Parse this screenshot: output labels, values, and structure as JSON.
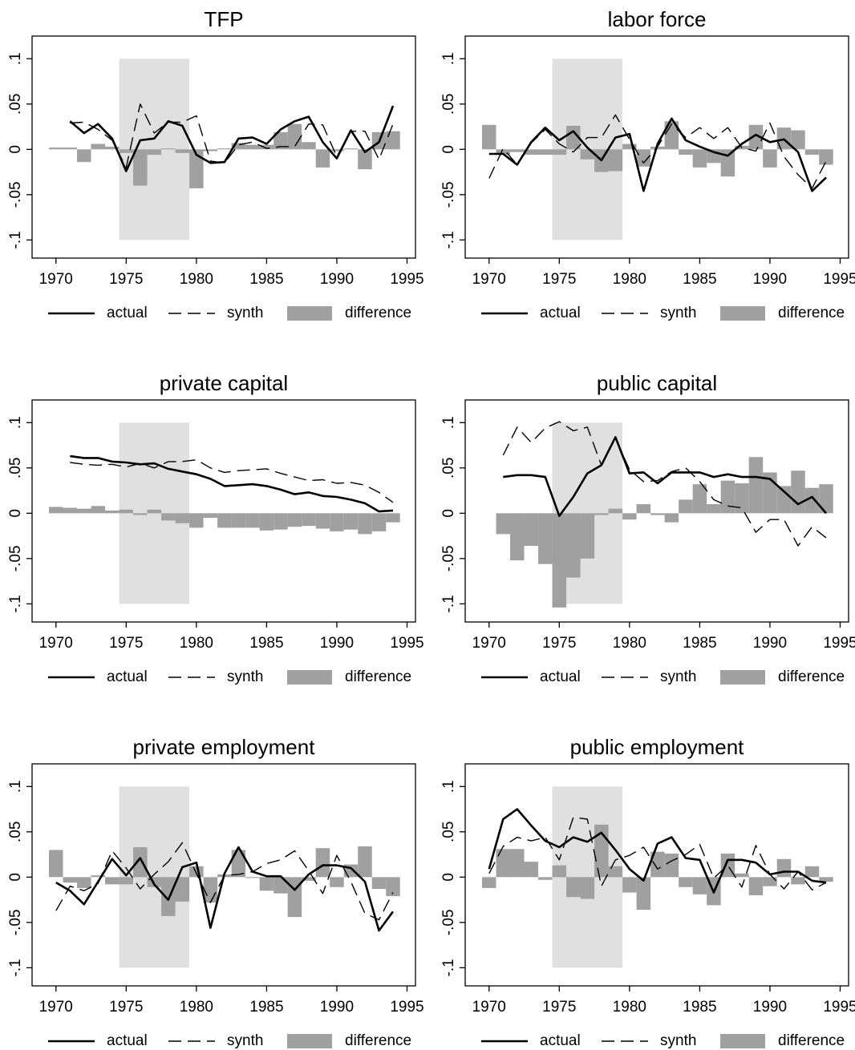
{
  "chart_data": [
    {
      "type": "combo",
      "title": "TFP",
      "x": [
        1970,
        1971,
        1972,
        1973,
        1974,
        1975,
        1976,
        1977,
        1978,
        1979,
        1980,
        1981,
        1982,
        1983,
        1984,
        1985,
        1986,
        1987,
        1988,
        1989,
        1990,
        1991,
        1992,
        1993,
        1994
      ],
      "series": [
        {
          "name": "actual",
          "color": "#000000",
          "mark": "line",
          "line_style": "solid",
          "values": [
            null,
            0.031,
            0.018,
            0.028,
            0.012,
            -0.024,
            0.01,
            0.012,
            0.031,
            0.026,
            -0.006,
            -0.015,
            -0.014,
            0.012,
            0.013,
            0.006,
            0.022,
            0.031,
            0.036,
            0.008,
            -0.01,
            0.021,
            -0.003,
            0.008,
            0.048
          ]
        },
        {
          "name": "synth",
          "color": "#000000",
          "mark": "line",
          "line_style": "dashed",
          "values": [
            null,
            0.029,
            0.03,
            0.022,
            0.01,
            -0.02,
            0.05,
            0.018,
            0.03,
            0.03,
            0.037,
            -0.013,
            -0.015,
            0.005,
            0.008,
            0.001,
            0.003,
            0.003,
            0.028,
            0.027,
            -0.008,
            0.02,
            0.02,
            -0.011,
            0.028
          ]
        },
        {
          "name": "difference",
          "color": "#a0a0a0",
          "mark": "bar",
          "values": [
            0.002,
            0.002,
            -0.014,
            0.006,
            0.003,
            -0.004,
            -0.04,
            -0.006,
            0.001,
            -0.004,
            -0.043,
            -0.002,
            0.001,
            0.007,
            0.005,
            0.005,
            0.019,
            0.028,
            0.008,
            -0.02,
            -0.002,
            0.001,
            -0.022,
            0.019,
            0.02
          ]
        }
      ],
      "shaded_region": {
        "x": [
          1974.5,
          1979.5
        ],
        "y": [
          -0.1,
          0.1
        ],
        "color": "#e0e0e0"
      },
      "xlim": [
        1968.3,
        1995.6
      ],
      "ylim": [
        -0.12,
        0.125
      ],
      "xticks": [
        1970,
        1975,
        1980,
        1985,
        1990,
        1995
      ],
      "yticks": [
        {
          "value": -0.1,
          "label": "-.1"
        },
        {
          "value": -0.05,
          "label": "-.05"
        },
        0,
        {
          "value": 0.05,
          "label": ".05"
        },
        {
          "value": 0.1,
          "label": ".1"
        }
      ],
      "legend": "bottom"
    },
    {
      "type": "combo",
      "title": "labor force",
      "x": [
        1970,
        1971,
        1972,
        1973,
        1974,
        1975,
        1976,
        1977,
        1978,
        1979,
        1980,
        1981,
        1982,
        1983,
        1984,
        1985,
        1986,
        1987,
        1988,
        1989,
        1990,
        1991,
        1992,
        1993,
        1994
      ],
      "series": [
        {
          "name": "actual",
          "color": "#000000",
          "mark": "line",
          "line_style": "solid",
          "values": [
            -0.005,
            -0.005,
            -0.017,
            0.008,
            0.024,
            0.01,
            0.02,
            0.002,
            -0.012,
            0.013,
            0.017,
            -0.046,
            0.006,
            0.034,
            0.01,
            0.003,
            -0.003,
            -0.007,
            0.006,
            0.016,
            0.008,
            0.011,
            -0.003,
            -0.046,
            -0.031
          ]
        },
        {
          "name": "synth",
          "color": "#000000",
          "mark": "line",
          "line_style": "dashed",
          "values": [
            -0.032,
            0.001,
            -0.017,
            0.007,
            0.022,
            0.006,
            -0.003,
            0.013,
            0.013,
            0.038,
            0.011,
            -0.015,
            0.003,
            0.028,
            0.013,
            0.024,
            0.012,
            0.024,
            0.002,
            -0.002,
            0.029,
            -0.008,
            -0.028,
            -0.043,
            -0.013
          ]
        },
        {
          "name": "difference",
          "color": "#a0a0a0",
          "mark": "bar",
          "values": [
            0.027,
            -0.006,
            -0.003,
            -0.006,
            -0.006,
            -0.006,
            0.026,
            -0.011,
            -0.025,
            -0.024,
            0.006,
            -0.019,
            0.003,
            0.031,
            -0.006,
            -0.02,
            -0.015,
            -0.03,
            0.004,
            0.027,
            -0.02,
            0.024,
            0.021,
            -0.006,
            -0.017
          ]
        }
      ],
      "shaded_region": {
        "x": [
          1974.5,
          1979.5
        ],
        "y": [
          -0.1,
          0.1
        ],
        "color": "#e0e0e0"
      },
      "xlim": [
        1968.3,
        1995.6
      ],
      "ylim": [
        -0.12,
        0.125
      ],
      "xticks": [
        1970,
        1975,
        1980,
        1985,
        1990,
        1995
      ],
      "yticks": [
        {
          "value": -0.1,
          "label": "-.1"
        },
        {
          "value": -0.05,
          "label": "-.05"
        },
        0,
        {
          "value": 0.05,
          "label": ".05"
        },
        {
          "value": 0.1,
          "label": ".1"
        }
      ],
      "legend": "bottom"
    },
    {
      "type": "combo",
      "title": "private capital",
      "x": [
        1970,
        1971,
        1972,
        1973,
        1974,
        1975,
        1976,
        1977,
        1978,
        1979,
        1980,
        1981,
        1982,
        1983,
        1984,
        1985,
        1986,
        1987,
        1988,
        1989,
        1990,
        1991,
        1992,
        1993,
        1994
      ],
      "series": [
        {
          "name": "actual",
          "color": "#000000",
          "mark": "line",
          "line_style": "solid",
          "values": [
            null,
            0.063,
            0.061,
            0.061,
            0.057,
            0.056,
            0.054,
            0.055,
            0.049,
            0.046,
            0.043,
            0.038,
            0.03,
            0.031,
            0.032,
            0.03,
            0.026,
            0.021,
            0.023,
            0.019,
            0.018,
            0.015,
            0.011,
            0.002,
            0.003
          ]
        },
        {
          "name": "synth",
          "color": "#000000",
          "mark": "line",
          "line_style": "dashed",
          "values": [
            null,
            0.056,
            0.054,
            0.053,
            0.054,
            0.051,
            0.055,
            0.05,
            0.057,
            0.057,
            0.059,
            0.05,
            0.045,
            0.047,
            0.048,
            0.049,
            0.044,
            0.04,
            0.036,
            0.037,
            0.033,
            0.034,
            0.031,
            0.023,
            0.012
          ]
        },
        {
          "name": "difference",
          "color": "#a0a0a0",
          "mark": "bar",
          "values": [
            0.007,
            0.006,
            0.005,
            0.008,
            0.003,
            0.004,
            -0.002,
            0.004,
            -0.008,
            -0.011,
            -0.016,
            -0.005,
            -0.016,
            -0.016,
            -0.016,
            -0.019,
            -0.018,
            -0.015,
            -0.014,
            -0.017,
            -0.02,
            -0.018,
            -0.023,
            -0.02,
            -0.01
          ]
        }
      ],
      "shaded_region": {
        "x": [
          1974.5,
          1979.5
        ],
        "y": [
          -0.1,
          0.1
        ],
        "color": "#e0e0e0"
      },
      "xlim": [
        1968.3,
        1995.6
      ],
      "ylim": [
        -0.12,
        0.125
      ],
      "xticks": [
        1970,
        1975,
        1980,
        1985,
        1990,
        1995
      ],
      "yticks": [
        {
          "value": -0.1,
          "label": "-.1"
        },
        {
          "value": -0.05,
          "label": "-.05"
        },
        0,
        {
          "value": 0.05,
          "label": ".05"
        },
        {
          "value": 0.1,
          "label": ".1"
        }
      ],
      "legend": "bottom"
    },
    {
      "type": "combo",
      "title": "public capital",
      "x": [
        1970,
        1971,
        1972,
        1973,
        1974,
        1975,
        1976,
        1977,
        1978,
        1979,
        1980,
        1981,
        1982,
        1983,
        1984,
        1985,
        1986,
        1987,
        1988,
        1989,
        1990,
        1991,
        1992,
        1993,
        1994
      ],
      "series": [
        {
          "name": "actual",
          "color": "#000000",
          "mark": "line",
          "line_style": "solid",
          "values": [
            null,
            0.04,
            0.042,
            0.042,
            0.04,
            -0.003,
            0.018,
            0.044,
            0.053,
            0.084,
            0.044,
            0.045,
            0.033,
            0.045,
            0.045,
            0.045,
            0.04,
            0.043,
            0.04,
            0.04,
            0.038,
            0.024,
            0.01,
            0.018,
            0.0
          ]
        },
        {
          "name": "synth",
          "color": "#000000",
          "mark": "line",
          "line_style": "dashed",
          "values": [
            null,
            0.064,
            0.095,
            0.078,
            0.094,
            0.101,
            0.091,
            0.095,
            0.053,
            0.083,
            0.048,
            0.035,
            0.036,
            0.046,
            0.05,
            0.035,
            0.015,
            0.008,
            0.006,
            -0.021,
            -0.007,
            -0.007,
            -0.036,
            -0.015,
            -0.027
          ]
        },
        {
          "name": "difference",
          "color": "#a0a0a0",
          "mark": "bar",
          "values": [
            null,
            -0.023,
            -0.052,
            -0.036,
            -0.056,
            -0.104,
            -0.071,
            -0.05,
            -0.002,
            0.005,
            -0.007,
            0.01,
            -0.002,
            -0.01,
            0.015,
            0.032,
            0.01,
            0.036,
            0.033,
            0.062,
            0.045,
            0.03,
            0.047,
            0.028,
            0.032
          ]
        }
      ],
      "shaded_region": {
        "x": [
          1974.5,
          1979.5
        ],
        "y": [
          -0.1,
          0.1
        ],
        "color": "#e0e0e0"
      },
      "xlim": [
        1968.3,
        1995.6
      ],
      "ylim": [
        -0.12,
        0.125
      ],
      "xticks": [
        1970,
        1975,
        1980,
        1985,
        1990,
        1995
      ],
      "yticks": [
        {
          "value": -0.1,
          "label": "-.1"
        },
        {
          "value": -0.05,
          "label": "-.05"
        },
        0,
        {
          "value": 0.05,
          "label": ".05"
        },
        {
          "value": 0.1,
          "label": ".1"
        }
      ],
      "legend": "bottom"
    },
    {
      "type": "combo",
      "title": "private employment",
      "x": [
        1970,
        1971,
        1972,
        1973,
        1974,
        1975,
        1976,
        1977,
        1978,
        1979,
        1980,
        1981,
        1982,
        1983,
        1984,
        1985,
        1986,
        1987,
        1988,
        1989,
        1990,
        1991,
        1992,
        1993,
        1994
      ],
      "series": [
        {
          "name": "actual",
          "color": "#000000",
          "mark": "line",
          "line_style": "solid",
          "values": [
            -0.006,
            -0.015,
            -0.03,
            -0.005,
            0.02,
            0.002,
            0.021,
            -0.008,
            -0.025,
            0.011,
            0.016,
            -0.056,
            0.004,
            0.033,
            0.006,
            0.001,
            0.001,
            -0.014,
            0.003,
            0.013,
            0.013,
            0.01,
            -0.005,
            -0.059,
            -0.038
          ]
        },
        {
          "name": "synth",
          "color": "#000000",
          "mark": "line",
          "line_style": "dashed",
          "values": [
            -0.037,
            -0.01,
            -0.015,
            -0.007,
            0.029,
            0.01,
            -0.013,
            0.003,
            0.017,
            0.038,
            0.004,
            -0.028,
            0.002,
            0.003,
            0.006,
            0.015,
            0.019,
            0.029,
            0.007,
            -0.018,
            0.024,
            -0.005,
            -0.04,
            -0.047,
            -0.017
          ]
        },
        {
          "name": "difference",
          "color": "#a0a0a0",
          "mark": "bar",
          "values": [
            0.03,
            -0.006,
            -0.012,
            0.002,
            -0.008,
            -0.008,
            0.033,
            -0.011,
            -0.043,
            -0.027,
            0.012,
            -0.028,
            0.003,
            0.03,
            -0.001,
            -0.015,
            -0.018,
            -0.044,
            -0.004,
            0.032,
            -0.011,
            0.014,
            0.034,
            -0.013,
            -0.021
          ]
        }
      ],
      "shaded_region": {
        "x": [
          1974.5,
          1979.5
        ],
        "y": [
          -0.1,
          0.1
        ],
        "color": "#e0e0e0"
      },
      "xlim": [
        1968.3,
        1995.6
      ],
      "ylim": [
        -0.12,
        0.125
      ],
      "xticks": [
        1970,
        1975,
        1980,
        1985,
        1990,
        1995
      ],
      "yticks": [
        {
          "value": -0.1,
          "label": "-.1"
        },
        {
          "value": -0.05,
          "label": "-.05"
        },
        0,
        {
          "value": 0.05,
          "label": ".05"
        },
        {
          "value": 0.1,
          "label": ".1"
        }
      ],
      "legend": "bottom"
    },
    {
      "type": "combo",
      "title": "public employment",
      "x": [
        1970,
        1971,
        1972,
        1973,
        1974,
        1975,
        1976,
        1977,
        1978,
        1979,
        1980,
        1981,
        1982,
        1983,
        1984,
        1985,
        1986,
        1987,
        1988,
        1989,
        1990,
        1991,
        1992,
        1993,
        1994
      ],
      "series": [
        {
          "name": "actual",
          "color": "#000000",
          "mark": "line",
          "line_style": "solid",
          "values": [
            0.009,
            0.064,
            0.075,
            0.057,
            0.04,
            0.033,
            0.044,
            0.039,
            0.049,
            0.03,
            0.009,
            -0.004,
            0.037,
            0.044,
            0.021,
            0.019,
            -0.017,
            0.019,
            0.019,
            0.016,
            0.003,
            0.006,
            0.006,
            -0.004,
            -0.006
          ]
        },
        {
          "name": "synth",
          "color": "#000000",
          "mark": "line",
          "line_style": "dashed",
          "values": [
            0.004,
            0.034,
            0.044,
            0.04,
            0.044,
            0.019,
            0.066,
            0.064,
            -0.01,
            0.019,
            0.024,
            0.033,
            0.009,
            0.018,
            0.025,
            0.036,
            -0.001,
            0.013,
            -0.011,
            0.035,
            0.003,
            -0.013,
            0.006,
            -0.014,
            -0.006
          ]
        },
        {
          "name": "difference",
          "color": "#a0a0a0",
          "mark": "bar",
          "values": [
            -0.012,
            0.031,
            0.031,
            0.017,
            -0.003,
            0.013,
            -0.022,
            -0.024,
            0.058,
            0.012,
            -0.017,
            -0.036,
            0.028,
            0.026,
            -0.011,
            -0.019,
            -0.031,
            0.026,
            0.004,
            -0.02,
            -0.01,
            0.02,
            -0.008,
            0.012,
            -0.005
          ]
        }
      ],
      "shaded_region": {
        "x": [
          1974.5,
          1979.5
        ],
        "y": [
          -0.1,
          0.1
        ],
        "color": "#e0e0e0"
      },
      "xlim": [
        1968.3,
        1995.6
      ],
      "ylim": [
        -0.12,
        0.125
      ],
      "xticks": [
        1970,
        1975,
        1980,
        1985,
        1990,
        1995
      ],
      "yticks": [
        {
          "value": -0.1,
          "label": "-.1"
        },
        {
          "value": -0.05,
          "label": "-.05"
        },
        0,
        {
          "value": 0.05,
          "label": ".05"
        },
        {
          "value": 0.1,
          "label": ".1"
        }
      ],
      "legend": "bottom"
    }
  ]
}
